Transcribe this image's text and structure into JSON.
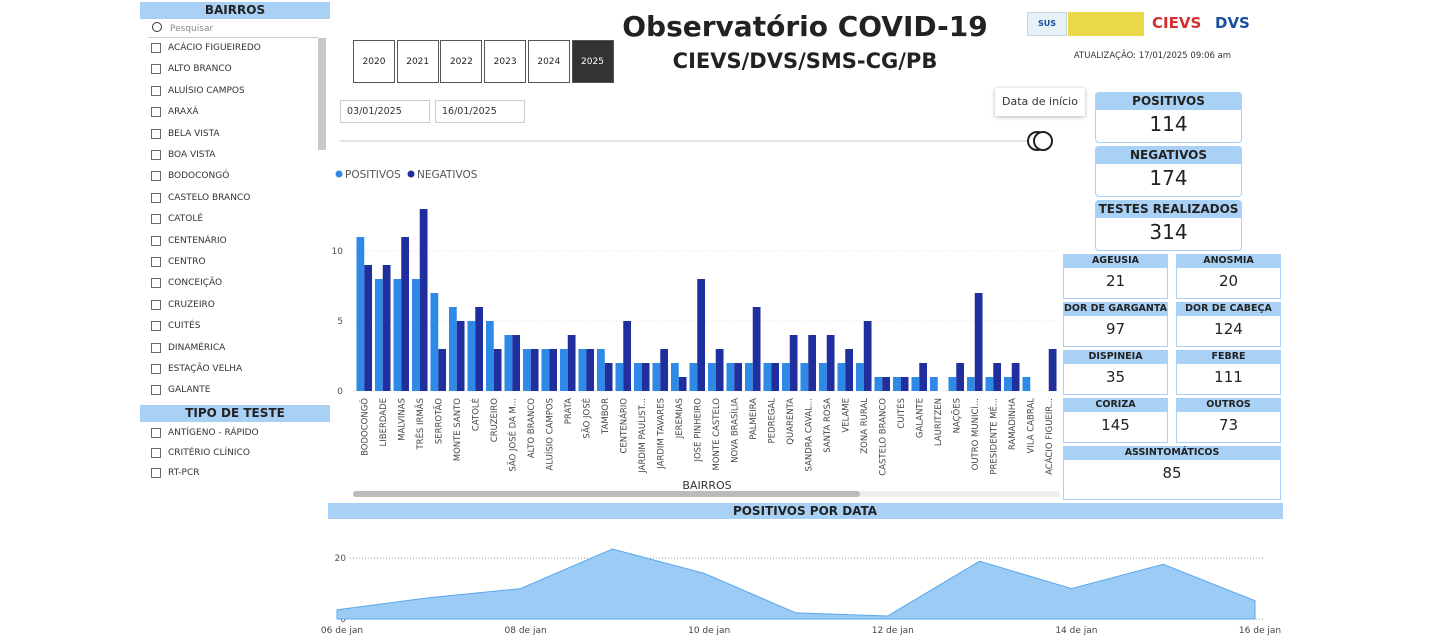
{
  "sidebar": {
    "bairros_title": "BAIRROS",
    "search_placeholder": "Pesquisar",
    "bairros": [
      "ACÁCIO FIGUEIREDO",
      "ALTO BRANCO",
      "ALUÍSIO CAMPOS",
      "ARAXÁ",
      "BELA VISTA",
      "BOA VISTA",
      "BODOCONGÓ",
      "CASTELO BRANCO",
      "CATOLÉ",
      "CENTENÁRIO",
      "CENTRO",
      "CONCEIÇÃO",
      "CRUZEIRO",
      "CUITÉS",
      "DINAMÉRICA",
      "ESTAÇÃO VELHA",
      "GALANTE"
    ],
    "tipo_title": "TIPO DE TESTE",
    "tipos": [
      "ANTÍGENO - RÁPIDO",
      "CRITÉRIO CLÍNICO",
      "RT-PCR"
    ]
  },
  "years": [
    {
      "label": "2020",
      "selected": false
    },
    {
      "label": "2021",
      "selected": false
    },
    {
      "label": "2022",
      "selected": false
    },
    {
      "label": "2023",
      "selected": false
    },
    {
      "label": "2024",
      "selected": false
    },
    {
      "label": "2025",
      "selected": true
    }
  ],
  "header": {
    "title": "Observatório COVID-19",
    "subtitle": "CIEVS/DVS/SMS-CG/PB",
    "update": "ATUALIZAÇÃO: 17/01/2025 09:06 am",
    "logos": [
      "SUS",
      "CIEVS",
      "DVS"
    ]
  },
  "date_range": {
    "start": "03/01/2025",
    "end": "16/01/2025",
    "tooltip": "Data de início"
  },
  "kpis": [
    {
      "label": "POSITIVOS",
      "value": 114
    },
    {
      "label": "NEGATIVOS",
      "value": 174
    },
    {
      "label": "TESTES REALIZADOS",
      "value": 314
    }
  ],
  "symptoms": [
    {
      "label": "AGEUSIA",
      "value": 21
    },
    {
      "label": "ANOSMIA",
      "value": 20
    },
    {
      "label": "DOR DE GARGANTA",
      "value": 97
    },
    {
      "label": "DOR DE CABEÇA",
      "value": 124
    },
    {
      "label": "DISPINEIA",
      "value": 35
    },
    {
      "label": "FEBRE",
      "value": 111
    },
    {
      "label": "CORIZA",
      "value": 145
    },
    {
      "label": "OUTROS",
      "value": 73
    },
    {
      "label": "ASSINTOMÁTICOS",
      "value": 85
    }
  ],
  "bar_chart": {
    "type": "bar",
    "x_label": "BAIRROS",
    "categories": [
      "BODOCONGÓ",
      "LIBERDADE",
      "MALVINAS",
      "TRÊS IRMÃS",
      "SERROTÃO",
      "MONTE SANTO",
      "CATOLÉ",
      "CRUZEIRO",
      "SÃO JOSÉ DA M...",
      "ALTO BRANCO",
      "ALUÍSIO CAMPOS",
      "PRATA",
      "SÃO JOSÉ",
      "TAMBOR",
      "CENTENÁRIO",
      "JARDIM PAULIST...",
      "JARDIM TAVARES",
      "JEREMIAS",
      "JOSÉ PINHEIRO",
      "MONTE CASTELO",
      "NOVA BRASÍLIA",
      "PALMEIRA",
      "PEDREGAL",
      "QUARENTA",
      "SANDRA CAVAL...",
      "SANTA ROSA",
      "VELAME",
      "ZONA RURAL",
      "CASTELO BRANCO",
      "CUITÉS",
      "GALANTE",
      "LAURITZEN",
      "NAÇÕES",
      "OUTRO MUNICÍ...",
      "PRESIDENTE MÉ...",
      "RAMADINHA",
      "VILA CABRAL",
      "ACÁCIO FIGUEIR..."
    ],
    "series": [
      {
        "name": "POSITIVOS",
        "color": "#2e8ae6",
        "values": [
          11,
          8,
          8,
          8,
          7,
          6,
          5,
          5,
          4,
          3,
          3,
          3,
          3,
          3,
          2,
          2,
          2,
          2,
          2,
          2,
          2,
          2,
          2,
          2,
          2,
          2,
          2,
          2,
          1,
          1,
          1,
          1,
          1,
          1,
          1,
          1,
          1,
          null
        ]
      },
      {
        "name": "NEGATIVOS",
        "color": "#1f2f9e",
        "values": [
          9,
          9,
          11,
          13,
          3,
          5,
          6,
          3,
          4,
          3,
          3,
          4,
          3,
          2,
          5,
          2,
          3,
          1,
          8,
          3,
          2,
          6,
          2,
          4,
          4,
          4,
          3,
          5,
          1,
          1,
          2,
          null,
          2,
          7,
          2,
          2,
          null,
          3
        ]
      }
    ],
    "ylim": [
      0,
      14
    ],
    "yticks": [
      0,
      5,
      10
    ],
    "grid": true
  },
  "area_chart": {
    "type": "area",
    "title": "POSITIVOS POR DATA",
    "x": [
      "06 de jan",
      null,
      "08 de jan",
      null,
      "10 de jan",
      null,
      "12 de jan",
      null,
      "14 de jan",
      null,
      "16 de jan"
    ],
    "values": [
      3,
      7,
      10,
      23,
      15,
      2,
      1,
      19,
      10,
      18,
      6
    ],
    "color": "#9ccbf5",
    "ylim": [
      0,
      24
    ],
    "yticks": [
      0,
      20
    ],
    "grid": true
  }
}
